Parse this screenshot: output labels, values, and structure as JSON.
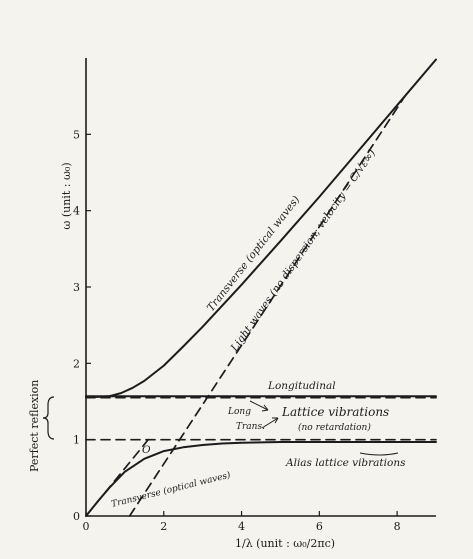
{
  "chart_data": {
    "type": "line",
    "title": "",
    "xlabel": "1/λ (unit :  ω₀/2πc)",
    "ylabel": "ω (unit :  ω₀)",
    "xlim": [
      0,
      9
    ],
    "ylim": [
      0,
      6
    ],
    "x_ticks": [
      "0",
      "2",
      "4",
      "6",
      "8"
    ],
    "y_ticks": [
      "0",
      "1",
      "2",
      "3",
      "4",
      "5"
    ],
    "grid": false,
    "legend": "none",
    "series": [
      {
        "label": "Transverse (optical waves)",
        "style": "solid",
        "x": [
          0,
          0.3,
          0.6,
          0.9,
          1.2,
          1.5,
          2.0,
          2.5,
          3.0,
          4.0,
          5.0,
          6.0,
          7.0,
          8.0,
          9.0
        ],
        "y": [
          1.56,
          1.56,
          1.57,
          1.61,
          1.68,
          1.77,
          1.97,
          2.22,
          2.48,
          3.03,
          3.6,
          4.18,
          4.78,
          5.38,
          5.98
        ]
      },
      {
        "label": "Transverse (optical waves)",
        "style": "solid",
        "x": [
          0,
          0.3,
          0.6,
          1.0,
          1.5,
          2.0,
          2.5,
          3.0,
          3.5,
          4.0,
          5.0,
          6.0,
          7.0,
          8.0,
          9.0
        ],
        "y": [
          0,
          0.19,
          0.37,
          0.58,
          0.75,
          0.85,
          0.9,
          0.93,
          0.95,
          0.96,
          0.97,
          0.97,
          0.97,
          0.97,
          0.97
        ]
      },
      {
        "label": "Longitudinal",
        "style": "solid",
        "x": [
          0,
          9
        ],
        "y": [
          1.57,
          1.57
        ]
      },
      {
        "label": "Light waves (no dispersion; velocity = C/√ε∞)",
        "style": "dashed",
        "x": [
          1.12,
          8.2
        ],
        "y": [
          0,
          5.5
        ]
      },
      {
        "label": "Alias lattice vibrations",
        "style": "dashed",
        "x": [
          0,
          1.6
        ],
        "y": [
          0,
          1.0
        ]
      },
      {
        "label": "Lattice vibrations (no retardation)",
        "style": "dashed",
        "x": [
          0,
          9
        ],
        "y": [
          1.55,
          1.55
        ]
      },
      {
        "label": "Lattice vibrations (no retardation)",
        "style": "dashed",
        "x": [
          0,
          9
        ],
        "y": [
          1.0,
          1.0
        ]
      }
    ],
    "annotations": {
      "transverse_upper": "Transverse (optical waves)",
      "light_waves": "Light waves (no dispersion; velocity = C/√ε∞)",
      "longitudinal": "Longitudinal",
      "lattice": "Lattice vibrations",
      "no_retardation": "(no retardation)",
      "long": "Long",
      "trans": "Trans.",
      "point_o": "O",
      "transverse_lower": "Transverse (optical waves)",
      "alias": "Alias lattice vibrations",
      "perfect_reflexion": "Perfect reflexion"
    }
  }
}
